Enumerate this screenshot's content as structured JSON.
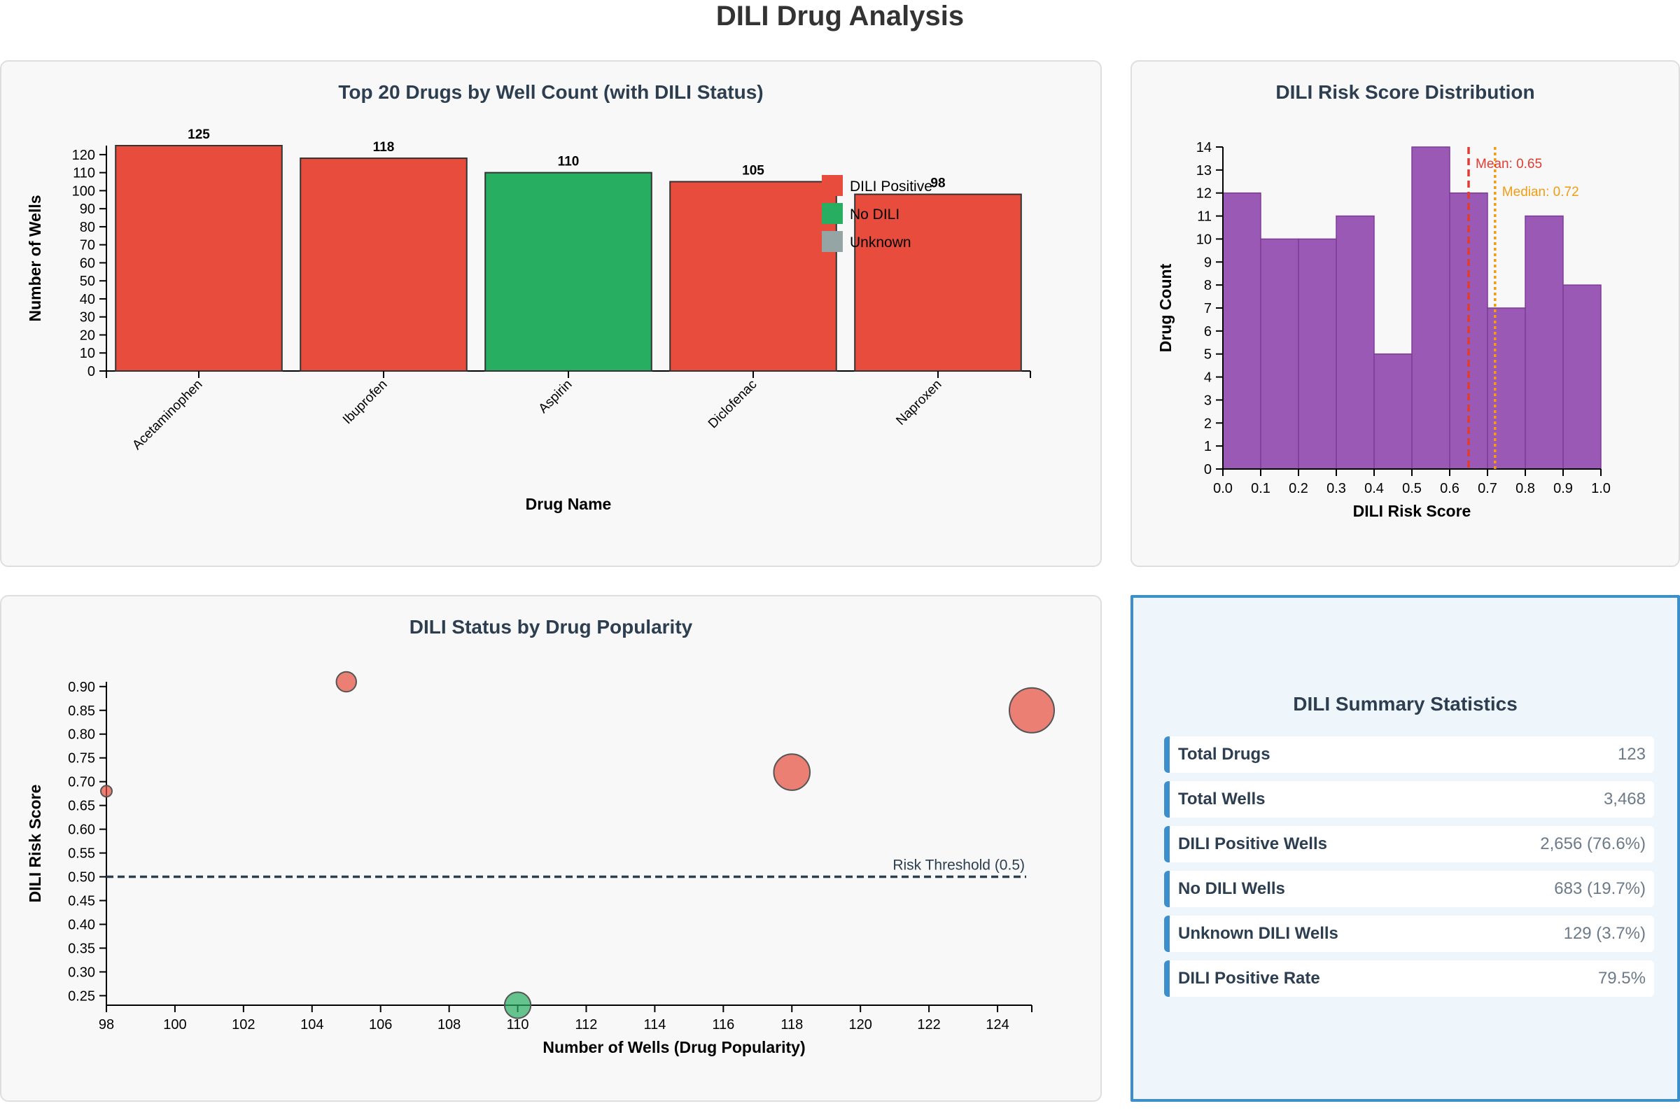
{
  "page_title": "DILI Drug Analysis",
  "colors": {
    "dili_positive": "#e74c3c",
    "no_dili": "#27ae60",
    "unknown": "#95a5a6",
    "histogram": "#9b59b6",
    "mean_line": "#e03c31",
    "median_line": "#f39c12",
    "threshold_line": "#2c3e50",
    "accent": "#3b8fcb"
  },
  "chart_data": [
    {
      "type": "bar",
      "title": "Top 20 Drugs by Well Count (with DILI Status)",
      "xlabel": "Drug Name",
      "ylabel": "Number of Wells",
      "categories": [
        "Acetaminophen",
        "Ibuprofen",
        "Aspirin",
        "Diclofenac",
        "Naproxen"
      ],
      "values": [
        125,
        118,
        110,
        105,
        98
      ],
      "status": [
        "DILI Positive",
        "DILI Positive",
        "No DILI",
        "DILI Positive",
        "DILI Positive"
      ],
      "ylim": [
        0,
        125
      ],
      "yticks": [
        0,
        10,
        20,
        30,
        40,
        50,
        60,
        70,
        80,
        90,
        100,
        110,
        120
      ],
      "legend": [
        "DILI Positive",
        "No DILI",
        "Unknown"
      ],
      "legend_position": "top-right"
    },
    {
      "type": "bar",
      "subtype": "histogram",
      "title": "DILI Risk Score Distribution",
      "xlabel": "DILI Risk Score",
      "ylabel": "Drug Count",
      "bin_edges": [
        0.0,
        0.1,
        0.2,
        0.3,
        0.4,
        0.5,
        0.6,
        0.7,
        0.8,
        0.9,
        1.0
      ],
      "counts": [
        12,
        10,
        10,
        11,
        5,
        14,
        12,
        7,
        11,
        8
      ],
      "xlim": [
        0.0,
        1.0
      ],
      "ylim": [
        0,
        14
      ],
      "xticks": [
        "0.0",
        "0.1",
        "0.2",
        "0.3",
        "0.4",
        "0.5",
        "0.6",
        "0.7",
        "0.8",
        "0.9",
        "1.0"
      ],
      "yticks": [
        0,
        1,
        2,
        3,
        4,
        5,
        6,
        7,
        8,
        9,
        10,
        11,
        12,
        13,
        14
      ],
      "mean": 0.65,
      "median": 0.72,
      "mean_label": "Mean: 0.65",
      "median_label": "Median: 0.72"
    },
    {
      "type": "scatter",
      "title": "DILI Status by Drug Popularity",
      "xlabel": "Number of Wells (Drug Popularity)",
      "ylabel": "DILI Risk Score",
      "points": [
        {
          "x": 125,
          "y": 0.85,
          "status": "DILI Positive"
        },
        {
          "x": 118,
          "y": 0.72,
          "status": "DILI Positive"
        },
        {
          "x": 110,
          "y": 0.23,
          "status": "No DILI"
        },
        {
          "x": 105,
          "y": 0.91,
          "status": "DILI Positive"
        },
        {
          "x": 98,
          "y": 0.68,
          "status": "DILI Positive"
        }
      ],
      "xlim": [
        98,
        125
      ],
      "ylim": [
        0.23,
        0.91
      ],
      "xticks": [
        98,
        100,
        102,
        104,
        106,
        108,
        110,
        112,
        114,
        116,
        118,
        120,
        122,
        124
      ],
      "yticks": [
        "0.25",
        "0.30",
        "0.35",
        "0.40",
        "0.45",
        "0.50",
        "0.55",
        "0.60",
        "0.65",
        "0.70",
        "0.75",
        "0.80",
        "0.85",
        "0.90"
      ],
      "threshold": 0.5,
      "threshold_label": "Risk Threshold (0.5)"
    }
  ],
  "stats": {
    "title": "DILI Summary Statistics",
    "rows": [
      {
        "label": "Total Drugs",
        "value": "123"
      },
      {
        "label": "Total Wells",
        "value": "3,468"
      },
      {
        "label": "DILI Positive Wells",
        "value": "2,656 (76.6%)"
      },
      {
        "label": "No DILI Wells",
        "value": "683 (19.7%)"
      },
      {
        "label": "Unknown DILI Wells",
        "value": "129 (3.7%)"
      },
      {
        "label": "DILI Positive Rate",
        "value": "79.5%"
      }
    ]
  }
}
